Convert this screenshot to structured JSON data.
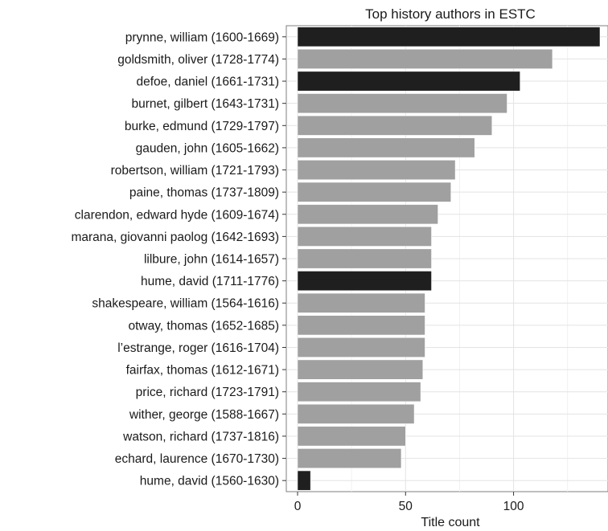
{
  "chart_data": {
    "type": "bar",
    "orientation": "horizontal",
    "title": "Top history authors in ESTC",
    "xlabel": "Title count",
    "ylabel": "",
    "xlim": [
      0,
      140
    ],
    "x_ticks": [
      0,
      50,
      100
    ],
    "grid": true,
    "highlight_color": "#1f1f1f",
    "default_color": "#a0a0a0",
    "categories": [
      "prynne, william (1600-1669)",
      "goldsmith, oliver (1728-1774)",
      "defoe, daniel (1661-1731)",
      "burnet, gilbert (1643-1731)",
      "burke, edmund (1729-1797)",
      "gauden, john (1605-1662)",
      "robertson, william (1721-1793)",
      "paine, thomas (1737-1809)",
      "clarendon, edward hyde (1609-1674)",
      "marana, giovanni paolog (1642-1693)",
      "lilbure, john (1614-1657)",
      "hume, david (1711-1776)",
      "shakespeare, william (1564-1616)",
      "otway, thomas (1652-1685)",
      "l’estrange, roger (1616-1704)",
      "fairfax, thomas (1612-1671)",
      "price, richard (1723-1791)",
      "wither, george (1588-1667)",
      "watson, richard (1737-1816)",
      "echard, laurence (1670-1730)",
      "hume, david (1560-1630)"
    ],
    "values": [
      140,
      118,
      103,
      97,
      90,
      82,
      73,
      71,
      65,
      62,
      62,
      62,
      59,
      59,
      59,
      58,
      57,
      54,
      50,
      48,
      6
    ],
    "highlighted": [
      true,
      false,
      true,
      false,
      false,
      false,
      false,
      false,
      false,
      false,
      false,
      true,
      false,
      false,
      false,
      false,
      false,
      false,
      false,
      false,
      true
    ]
  }
}
